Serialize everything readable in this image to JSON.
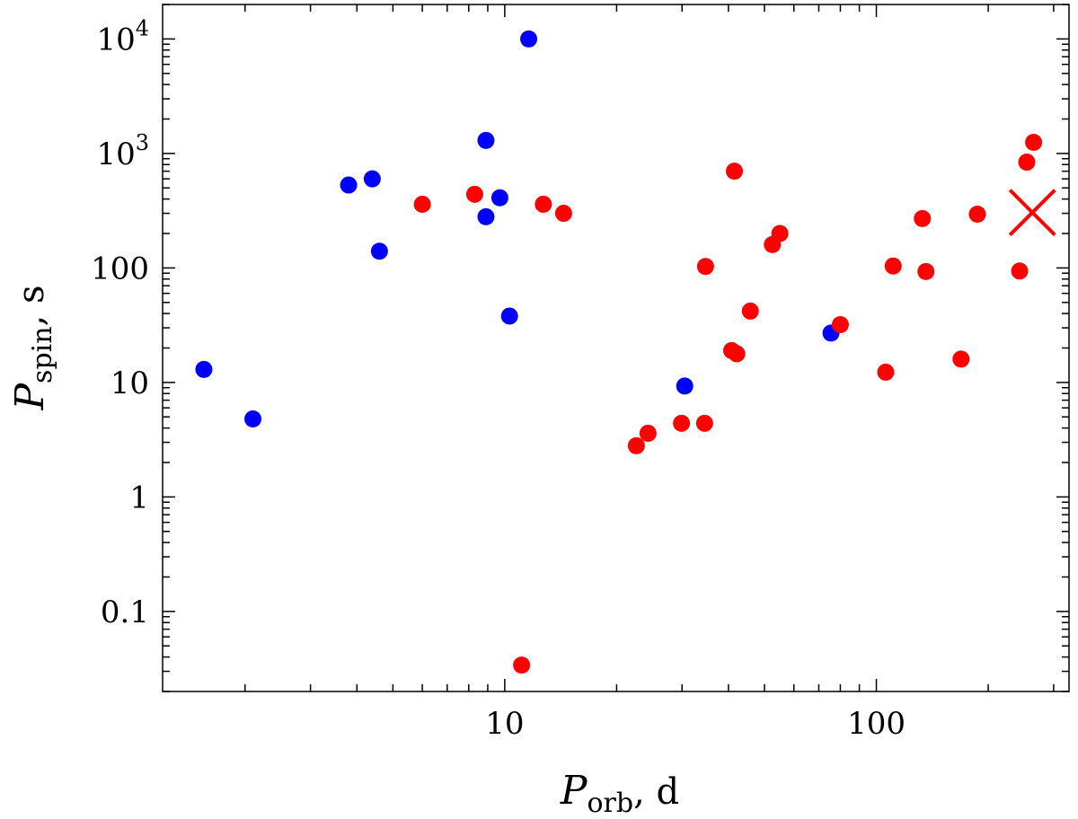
{
  "chart_data": {
    "type": "scatter",
    "xlabel": {
      "main": "P",
      "sub": "orb",
      "unit": ", d"
    },
    "ylabel": {
      "main": "P",
      "sub": "spin",
      "unit": ", s"
    },
    "xscale": "log",
    "yscale": "log",
    "xlim": [
      1.2,
      330
    ],
    "ylim": [
      0.02,
      20000
    ],
    "grid": false,
    "x_tick_labels": [
      {
        "value": 10,
        "label": "10"
      },
      {
        "value": 100,
        "label": "100"
      }
    ],
    "y_tick_labels": [
      {
        "value": 0.1,
        "label": "0.1"
      },
      {
        "value": 1,
        "label": "1"
      },
      {
        "value": 10,
        "label": "10"
      },
      {
        "value": 100,
        "label": "100"
      },
      {
        "value": 1000,
        "label": "10",
        "exp": "3"
      },
      {
        "value": 10000,
        "label": "10",
        "exp": "4"
      }
    ],
    "colors": {
      "blue": "#0000ff",
      "red": "#ff0000"
    },
    "series": [
      {
        "color": "#0000ff",
        "marker": "circle",
        "points": [
          [
            1.55,
            13
          ],
          [
            2.1,
            4.8
          ],
          [
            3.8,
            530
          ],
          [
            4.4,
            600
          ],
          [
            4.6,
            140
          ],
          [
            8.9,
            1300
          ],
          [
            8.9,
            280
          ],
          [
            9.7,
            410
          ],
          [
            10.3,
            38
          ],
          [
            11.6,
            10000
          ],
          [
            30.5,
            9.3
          ],
          [
            75.5,
            27
          ]
        ]
      },
      {
        "color": "#ff0000",
        "marker": "circle",
        "points": [
          [
            6.0,
            360
          ],
          [
            8.3,
            440
          ],
          [
            11.1,
            0.034
          ],
          [
            12.7,
            360
          ],
          [
            14.4,
            300
          ],
          [
            22.6,
            2.8
          ],
          [
            24.3,
            3.6
          ],
          [
            29.9,
            4.4
          ],
          [
            34.5,
            4.4
          ],
          [
            34.7,
            103
          ],
          [
            40.8,
            19
          ],
          [
            41.5,
            700
          ],
          [
            42.1,
            17.8
          ],
          [
            45.8,
            42
          ],
          [
            52.5,
            160
          ],
          [
            55.0,
            200
          ],
          [
            80.0,
            32
          ],
          [
            106,
            12.3
          ],
          [
            111,
            104
          ],
          [
            133,
            270
          ],
          [
            136,
            93
          ],
          [
            169,
            16
          ],
          [
            187,
            295
          ],
          [
            243,
            94
          ],
          [
            254,
            840
          ],
          [
            265,
            1250
          ]
        ]
      },
      {
        "color": "#ff0000",
        "marker": "x",
        "points": [
          [
            263,
            305
          ]
        ]
      }
    ]
  }
}
